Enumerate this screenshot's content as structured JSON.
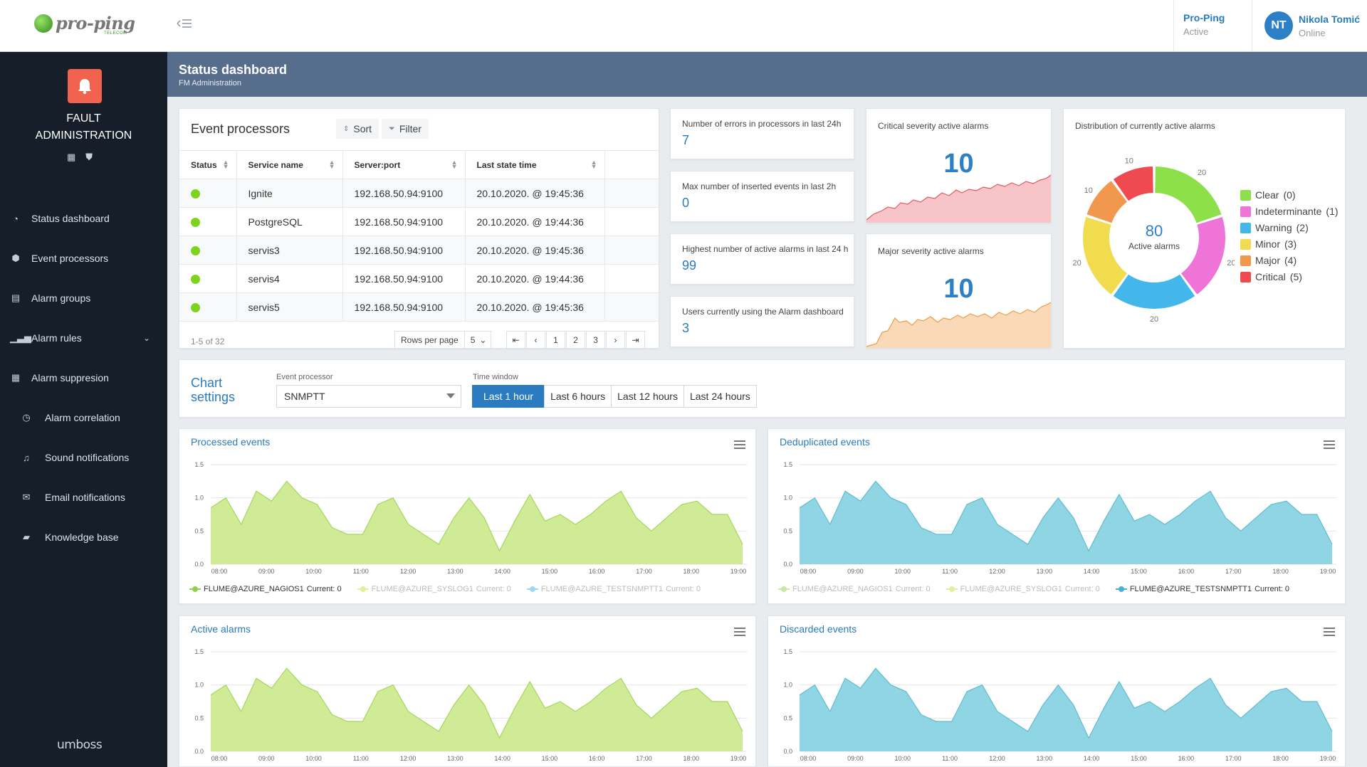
{
  "topbar": {
    "logo_text": "pro-ping",
    "logo_sub": "TELECOM",
    "org_name": "Pro-Ping",
    "org_status": "Active",
    "user_initials": "NT",
    "user_name": "Nikola Tomić",
    "user_status": "Online"
  },
  "sidebar": {
    "module_title_1": "FAULT",
    "module_title_2": "ADMINISTRATION",
    "items": [
      {
        "label": "Status dashboard",
        "icon": "gauge-icon"
      },
      {
        "label": "Event processors",
        "icon": "cube-icon"
      },
      {
        "label": "Alarm groups",
        "icon": "document-icon"
      },
      {
        "label": "Alarm rules",
        "icon": "bars-icon"
      },
      {
        "label": "Alarm suppresion",
        "icon": "grid-icon"
      },
      {
        "label": "Alarm correlation",
        "icon": "clock-icon"
      },
      {
        "label": "Sound notifications",
        "icon": "bell-icon"
      },
      {
        "label": "Email notifications",
        "icon": "mail-icon"
      },
      {
        "label": "Knowledge base",
        "icon": "book-icon"
      }
    ],
    "brand": "umboss"
  },
  "header": {
    "title": "Status dashboard",
    "subtitle": "FM Administration"
  },
  "event_processors": {
    "title": "Event processors",
    "sort_label": "Sort",
    "filter_label": "Filter",
    "columns": [
      "Status",
      "Service name",
      "Server:port",
      "Last state time"
    ],
    "rows": [
      {
        "service": "Ignite",
        "server": "192.168.50.94:9100",
        "time": "20.10.2020. @ 19:45:36"
      },
      {
        "service": "PostgreSQL",
        "server": "192.168.50.94:9100",
        "time": "20.10.2020. @ 19:44:36"
      },
      {
        "service": "servis3",
        "server": "192.168.50.94:9100",
        "time": "20.10.2020. @ 19:45:36"
      },
      {
        "service": "servis4",
        "server": "192.168.50.94:9100",
        "time": "20.10.2020. @ 19:44:36"
      },
      {
        "service": "servis5",
        "server": "192.168.50.94:9100",
        "time": "20.10.2020. @ 19:45:36"
      }
    ],
    "range": "1-5 of 32",
    "rows_per_page_label": "Rows per page",
    "rows_per_page": "5",
    "pages": [
      "1",
      "2",
      "3"
    ],
    "status_color": "#7ed321"
  },
  "stats": [
    {
      "label": "Number of errors in processors in last 24h",
      "value": "7"
    },
    {
      "label": "Max number of inserted events in last 2h",
      "value": "0"
    },
    {
      "label": "Highest number of active alarms in last 24 h",
      "value": "99"
    },
    {
      "label": "Users currently using the Alarm dashboard",
      "value": "3"
    }
  ],
  "severity": {
    "critical": {
      "label": "Critical severity active alarms",
      "value": "10",
      "color": "#f7c4c8",
      "line": "#e05a64"
    },
    "major": {
      "label": "Major severity active alarms",
      "value": "10",
      "color": "#fad9b8",
      "line": "#ee9b45"
    }
  },
  "distribution": {
    "title": "Distribution of currently active alarms",
    "center_value": "80",
    "center_label": "Active alarms",
    "slices": [
      {
        "name": "Clear",
        "value": 20,
        "count": "(0)",
        "color": "#8ee04a"
      },
      {
        "name": "Indeterminante",
        "value": 20,
        "count": "(1)",
        "color": "#ee74d8"
      },
      {
        "name": "Warning",
        "value": 20,
        "count": "(2)",
        "color": "#43b6ea"
      },
      {
        "name": "Minor",
        "value": 20,
        "count": "(3)",
        "color": "#f0dc4e"
      },
      {
        "name": "Major",
        "value": 10,
        "count": "(4)",
        "color": "#f2984e"
      },
      {
        "name": "Critical",
        "value": 10,
        "count": "(5)",
        "color": "#ee4a50"
      }
    ]
  },
  "chart_settings": {
    "title_1": "Chart",
    "title_2": "settings",
    "processor_label": "Event processor",
    "processor_value": "SNMPTT",
    "time_window_label": "Time window",
    "time_windows": [
      "Last 1 hour",
      "Last 6 hours",
      "Last 12 hours",
      "Last 24 hours"
    ],
    "active_window": "Last 1 hour"
  },
  "charts": {
    "processed": {
      "title": "Processed events",
      "legend": [
        {
          "name": "FLUME@AZURE_NAGIOS1",
          "current": "Current: 0",
          "active": true,
          "color": "#8fd14f"
        },
        {
          "name": "FLUME@AZURE_SYSLOG1",
          "current": "Current: 0",
          "active": false,
          "color": "#e6ee9c"
        },
        {
          "name": "FLUME@AZURE_TESTSNMPTT1",
          "current": "Current: 0",
          "active": false,
          "color": "#9fd8f0"
        }
      ]
    },
    "deduplicated": {
      "title": "Deduplicated events",
      "legend": [
        {
          "name": "FLUME@AZURE_NAGIOS1",
          "current": "Current: 0",
          "active": false,
          "color": "#c5e8a5"
        },
        {
          "name": "FLUME@AZURE_SYSLOG1",
          "current": "Current: 0",
          "active": false,
          "color": "#e6ee9c"
        },
        {
          "name": "FLUME@AZURE_TESTSNMPTT1",
          "current": "Current: 0",
          "active": true,
          "color": "#4ab0d6"
        }
      ]
    },
    "active": {
      "title": "Active alarms"
    },
    "discarded": {
      "title": "Discarded events"
    }
  },
  "chart_data": {
    "type": "area",
    "x": [
      "08:00",
      "09:00",
      "10:00",
      "11:00",
      "12:00",
      "13:00",
      "14:00",
      "15:00",
      "16:00",
      "17:00",
      "18:00",
      "19:00"
    ],
    "yticks": [
      "1.5",
      "1.0",
      "0.5",
      "0.0"
    ],
    "ylim": [
      0,
      1.5
    ],
    "series_values": [
      0.85,
      1.0,
      0.6,
      1.1,
      0.95,
      1.25,
      1.0,
      0.9,
      0.55,
      0.45,
      0.45,
      0.9,
      1.0,
      0.6,
      0.45,
      0.3,
      0.7,
      1.0,
      0.7,
      0.2,
      0.65,
      1.05,
      0.65,
      0.75,
      0.6,
      0.75,
      0.95,
      1.1,
      0.7,
      0.5,
      0.7,
      0.9,
      0.95,
      0.75,
      0.75,
      0.3
    ]
  },
  "colors": {
    "accent": "#2a7bbf",
    "green_fill": "#cfeb95",
    "green_line": "#a7d65c",
    "blue_fill": "#8fd5e3",
    "blue_line": "#5fbdd3"
  }
}
